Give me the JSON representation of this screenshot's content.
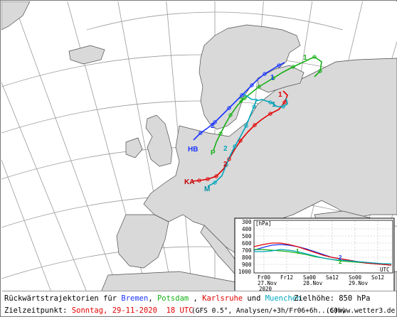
{
  "map": {
    "station_labels": [
      {
        "id": "bremen",
        "text": "HB",
        "color": "#1a35ff"
      },
      {
        "id": "potsdam",
        "text": "P",
        "color": "#16b016"
      },
      {
        "id": "karlsruhe",
        "text": "KA",
        "color": "#c00000"
      },
      {
        "id": "muenchen",
        "text": "M",
        "color": "#008fa5"
      }
    ],
    "day_markers": [
      {
        "text": "1",
        "color": "#16b016"
      },
      {
        "text": "2",
        "color": "#1a35ff"
      },
      {
        "text": "2",
        "color": "#16b016"
      },
      {
        "text": "1",
        "color": "#1a35ff"
      },
      {
        "text": "1",
        "color": "#e00000"
      },
      {
        "text": "1",
        "color": "#008fa5"
      },
      {
        "text": "2",
        "color": "#00a6bd"
      },
      {
        "text": "2",
        "color": "#e00000"
      }
    ]
  },
  "inset": {
    "unit_label": "[hPa]",
    "y_ticks": [
      "300",
      "400",
      "500",
      "600",
      "700",
      "800",
      "900",
      "1000"
    ],
    "x_ticks": [
      {
        "line1": "Fr00",
        "line2": "27.Nov",
        "line3": "2020"
      },
      {
        "line1": "Fr12",
        "line2": "",
        "line3": ""
      },
      {
        "line1": "Sa00",
        "line2": "28.Nov",
        "line3": ""
      },
      {
        "line1": "Sa12",
        "line2": "",
        "line3": ""
      },
      {
        "line1": "So00",
        "line2": "29.Nov",
        "line3": ""
      },
      {
        "line1": "So12",
        "line2": "",
        "line3": ""
      }
    ],
    "utc_label": "UTC",
    "series": [
      {
        "name": "Bremen",
        "color": "#1a35ff"
      },
      {
        "name": "Potsdam",
        "color": "#16b016"
      },
      {
        "name": "Karlsruhe",
        "color": "#e00000"
      },
      {
        "name": "Muenchen",
        "color": "#00a6bd"
      }
    ]
  },
  "caption": {
    "title_prefix": "Rückwärtstrajektorien für ",
    "bremen": "Bremen",
    "sep1": ", ",
    "potsdam": "Potsdam",
    "sep2": " , ",
    "karlsruhe": "Karlsruhe",
    "und": " und ",
    "muenchen": "Muenchen",
    "height": "Zielhöhe: 850 hPa",
    "target_label": "Zielzeitpunkt: ",
    "target_time": "Sonntag, 29-11-2020  18 UTC",
    "model_info": "(GFS 0.5°, Analysen/+3h/Fr06+6h...60h)",
    "copyright": "(C)www.wetter3.de"
  }
}
